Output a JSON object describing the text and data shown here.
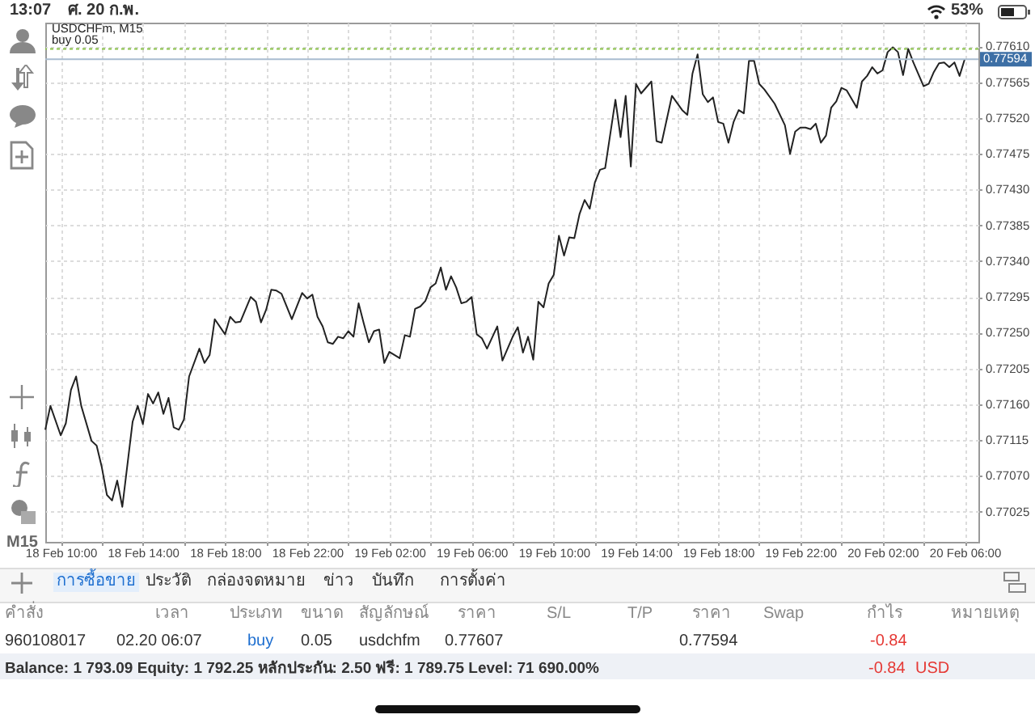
{
  "chart_data": [
    {
      "type": "line",
      "annotations": [
        "USDCHFm, M15"
      ],
      "xlim": [
        "--02-18T09:15",
        "--02-20T06:40"
      ],
      "ylim": [
        0.76987,
        0.7764
      ],
      "xticks": [
        {
          "value": "--02-18T10:00",
          "label": "18 Feb 10:00"
        },
        {
          "value": "--02-18T12:00",
          "label": null
        },
        {
          "value": "--02-18T14:00",
          "label": "18 Feb 14:00"
        },
        {
          "value": "--02-18T16:00",
          "label": null
        },
        {
          "value": "--02-18T18:00",
          "label": "18 Feb 18:00"
        },
        {
          "value": "--02-18T20:00",
          "label": null
        },
        {
          "value": "--02-18T22:00",
          "label": "18 Feb 22:00"
        },
        {
          "value": "--02-19T00:00",
          "label": null
        },
        {
          "value": "--02-19T02:00",
          "label": "19 Feb 02:00"
        },
        {
          "value": "--02-19T04:00",
          "label": null
        },
        {
          "value": "--02-19T06:00",
          "label": "19 Feb 06:00"
        },
        {
          "value": "--02-19T08:00",
          "label": null
        },
        {
          "value": "--02-19T10:00",
          "label": "19 Feb 10:00"
        },
        {
          "value": "--02-19T12:00",
          "label": null
        },
        {
          "value": "--02-19T14:00",
          "label": "19 Feb 14:00"
        },
        {
          "value": "--02-19T16:00",
          "label": null
        },
        {
          "value": "--02-19T18:00",
          "label": "19 Feb 18:00"
        },
        {
          "value": "--02-19T20:00",
          "label": null
        },
        {
          "value": "--02-19T22:00",
          "label": "19 Feb 22:00"
        },
        {
          "value": "--02-20T00:00",
          "label": null
        },
        {
          "value": "--02-20T02:00",
          "label": "20 Feb 02:00"
        },
        {
          "value": "--02-20T04:00",
          "label": null
        },
        {
          "value": "--02-20T06:00",
          "label": "20 Feb 06:00"
        }
      ],
      "yticks": [
        0.77025,
        {
          "value": 0.7707,
          "label": "0.77070"
        },
        0.77115,
        {
          "value": 0.7716,
          "label": "0.77160"
        },
        0.77205,
        {
          "value": 0.7725,
          "label": "0.77250"
        },
        0.77295,
        {
          "value": 0.7734,
          "label": "0.77340"
        },
        0.77385,
        {
          "value": 0.7743,
          "label": "0.77430"
        },
        0.77475,
        {
          "value": 0.7752,
          "label": "0.77520"
        },
        0.77565,
        {
          "value": 0.7761,
          "label": "0.77610"
        }
      ],
      "grid": true,
      "ref_lines": [
        {
          "axis": "y",
          "value": 0.77607,
          "label": "buy 0.05",
          "color": "#8bc34a",
          "line_style": "dotted"
        },
        {
          "axis": "y",
          "value": 0.77594,
          "label": "0.77594",
          "color": "#a9bcd0",
          "line_style": "solid"
        }
      ],
      "series": [
        {
          "color": "#222222",
          "x": [
            "--02-18T09:15",
            "--02-18T09:30",
            "--02-18T10:00",
            "--02-18T10:15",
            "--02-18T10:30",
            "--02-18T10:45",
            "--02-18T11:00",
            "--02-18T11:30",
            "--02-18T11:45",
            "--02-18T12:00",
            "--02-18T12:15",
            "--02-18T12:30",
            "--02-18T12:45",
            "--02-18T13:00",
            "--02-18T13:30",
            "--02-18T13:45",
            "--02-18T14:00",
            "--02-18T14:15",
            "--02-18T14:30",
            "--02-18T14:45",
            "--02-18T15:00",
            "--02-18T15:15",
            "--02-18T15:30",
            "--02-18T15:45",
            "--02-18T16:00",
            "--02-18T16:15",
            "--02-18T16:45",
            "--02-18T17:00",
            "--02-18T17:15",
            "--02-18T17:30",
            "--02-18T18:00",
            "--02-18T18:15",
            "--02-18T18:30",
            "--02-18T18:45",
            "--02-18T19:15",
            "--02-18T19:30",
            "--02-18T19:45",
            "--02-18T20:00",
            "--02-18T20:15",
            "--02-18T20:30",
            "--02-18T20:45",
            "--02-18T21:15",
            "--02-18T21:45",
            "--02-18T22:00",
            "--02-18T22:15",
            "--02-18T22:30",
            "--02-18T22:45",
            "--02-18T23:00",
            "--02-18T23:15",
            "--02-18T23:30",
            "--02-18T23:45",
            "--02-19T00:00",
            "--02-19T00:15",
            "--02-19T00:30",
            "--02-19T00:45",
            "--02-19T01:00",
            "--02-19T01:15",
            "--02-19T01:30",
            "--02-19T01:45",
            "--02-19T02:00",
            "--02-19T02:30",
            "--02-19T02:45",
            "--02-19T03:00",
            "--02-19T03:15",
            "--02-19T03:30",
            "--02-19T03:45",
            "--02-19T04:00",
            "--02-19T04:15",
            "--02-19T04:30",
            "--02-19T04:45",
            "--02-19T05:00",
            "--02-19T05:15",
            "--02-19T05:30",
            "--02-19T05:45",
            "--02-19T06:00",
            "--02-19T06:15",
            "--02-19T06:30",
            "--02-19T06:45",
            "--02-19T07:15",
            "--02-19T07:30",
            "--02-19T08:00",
            "--02-19T08:15",
            "--02-19T08:30",
            "--02-19T08:45",
            "--02-19T09:00",
            "--02-19T09:15",
            "--02-19T09:30",
            "--02-19T09:45",
            "--02-19T10:00",
            "--02-19T10:15",
            "--02-19T10:30",
            "--02-19T10:45",
            "--02-19T11:00",
            "--02-19T11:15",
            "--02-19T11:30",
            "--02-19T11:45",
            "--02-19T12:00",
            "--02-19T12:15",
            "--02-19T12:30",
            "--02-19T13:00",
            "--02-19T13:15",
            "--02-19T13:30",
            "--02-19T13:45",
            "--02-19T14:00",
            "--02-19T14:15",
            "--02-19T14:45",
            "--02-19T15:00",
            "--02-19T15:15",
            "--02-19T15:45",
            "--02-19T16:15",
            "--02-19T16:30",
            "--02-19T16:45",
            "--02-19T17:00",
            "--02-19T17:15",
            "--02-19T17:30",
            "--02-19T17:45",
            "--02-19T18:00",
            "--02-19T18:15",
            "--02-19T18:30",
            "--02-19T18:45",
            "--02-19T19:00",
            "--02-19T19:15",
            "--02-19T19:30",
            "--02-19T19:45",
            "--02-19T20:00",
            "--02-19T20:15",
            "--02-19T20:45",
            "--02-19T21:15",
            "--02-19T21:30",
            "--02-19T21:45",
            "--02-19T22:00",
            "--02-19T22:15",
            "--02-19T22:30",
            "--02-19T22:45",
            "--02-19T23:00",
            "--02-19T23:15",
            "--02-19T23:30",
            "--02-19T23:45",
            "--02-20T00:00",
            "--02-20T00:15",
            "--02-20T00:45",
            "--02-20T01:00",
            "--02-20T01:15",
            "--02-20T01:30",
            "--02-20T01:45",
            "--02-20T02:00",
            "--02-20T02:15",
            "--02-20T02:30",
            "--02-20T02:45",
            "--02-20T03:00",
            "--02-20T03:15",
            "--02-20T03:30",
            "--02-20T04:00",
            "--02-20T04:15",
            "--02-20T04:30",
            "--02-20T04:45",
            "--02-20T05:00",
            "--02-20T05:15",
            "--02-20T05:30",
            "--02-20T05:45",
            "--02-20T06:00"
          ],
          "values": [
            0.77128,
            0.77158,
            0.77121,
            0.77136,
            0.77178,
            0.77195,
            0.77158,
            0.77114,
            0.77108,
            0.77081,
            0.77046,
            0.77039,
            0.77064,
            0.77031,
            0.77138,
            0.77158,
            0.77135,
            0.77173,
            0.77161,
            0.77175,
            0.77148,
            0.77168,
            0.77131,
            0.77128,
            0.77141,
            0.77195,
            0.7723,
            0.77212,
            0.77222,
            0.77267,
            0.77248,
            0.7727,
            0.77263,
            0.77264,
            0.77295,
            0.77289,
            0.77263,
            0.77279,
            0.77304,
            0.77303,
            0.77299,
            0.77267,
            0.773,
            0.77293,
            0.77298,
            0.7727,
            0.77258,
            0.77238,
            0.77236,
            0.77245,
            0.77243,
            0.77252,
            0.77245,
            0.77287,
            0.77262,
            0.77238,
            0.77252,
            0.77254,
            0.77212,
            0.77226,
            0.77218,
            0.77247,
            0.77245,
            0.7728,
            0.77283,
            0.7729,
            0.77307,
            0.77312,
            0.77332,
            0.77304,
            0.77321,
            0.77307,
            0.77287,
            0.77289,
            0.77295,
            0.77248,
            0.77243,
            0.7723,
            0.77258,
            0.77215,
            0.77245,
            0.77257,
            0.77225,
            0.77245,
            0.77216,
            0.77289,
            0.77282,
            0.77312,
            0.77323,
            0.77372,
            0.77347,
            0.7737,
            0.77369,
            0.77399,
            0.77417,
            0.77406,
            0.77439,
            0.77455,
            0.77457,
            0.77543,
            0.77496,
            0.77548,
            0.77459,
            0.77563,
            0.77551,
            0.77566,
            0.77491,
            0.77489,
            0.77548,
            0.7753,
            0.77524,
            0.77576,
            0.776,
            0.7755,
            0.7754,
            0.77546,
            0.77515,
            0.77513,
            0.77489,
            0.77515,
            0.7753,
            0.77526,
            0.77592,
            0.77592,
            0.77563,
            0.77556,
            0.77538,
            0.77511,
            0.77475,
            0.77503,
            0.77508,
            0.77508,
            0.77506,
            0.77513,
            0.77489,
            0.77498,
            0.77533,
            0.77541,
            0.77558,
            0.77555,
            0.77533,
            0.77566,
            0.77573,
            0.77584,
            0.77576,
            0.7758,
            0.77603,
            0.77609,
            0.77603,
            0.77574,
            0.77607,
            0.7759,
            0.7756,
            0.77563,
            0.77578,
            0.77589,
            0.7759,
            0.77584,
            0.7759,
            0.77573,
            0.77594
          ]
        }
      ]
    },
    {
      "type": "other",
      "annotations": [
        "13:07",
        "ศ. 20 ก.พ.",
        "53%",
        "M15",
        "การซื้อขาย",
        "ประวัติ",
        "กล่องจดหมาย",
        "ข่าว",
        "บันทึก",
        "การตั้งค่า",
        "คำสั่ง",
        "เวลา",
        "ประเภท",
        "ขนาด",
        "สัญลักษณ์",
        "ราคา",
        "S/L",
        "T/P",
        "ราคา",
        "Swap",
        "กำไร",
        "หมายเหตุ",
        "960108017",
        "02.20 06:07",
        "buy",
        "0.05",
        "usdchfm",
        "0.77607",
        "0.77594",
        "-0.84",
        "Balance: 1 793.09 Equity: 1 792.25 หลักประกัน: 2.50 ฟรี: 1 789.75 Level: 71 690.00%",
        "-0.84",
        "USD"
      ]
    }
  ]
}
